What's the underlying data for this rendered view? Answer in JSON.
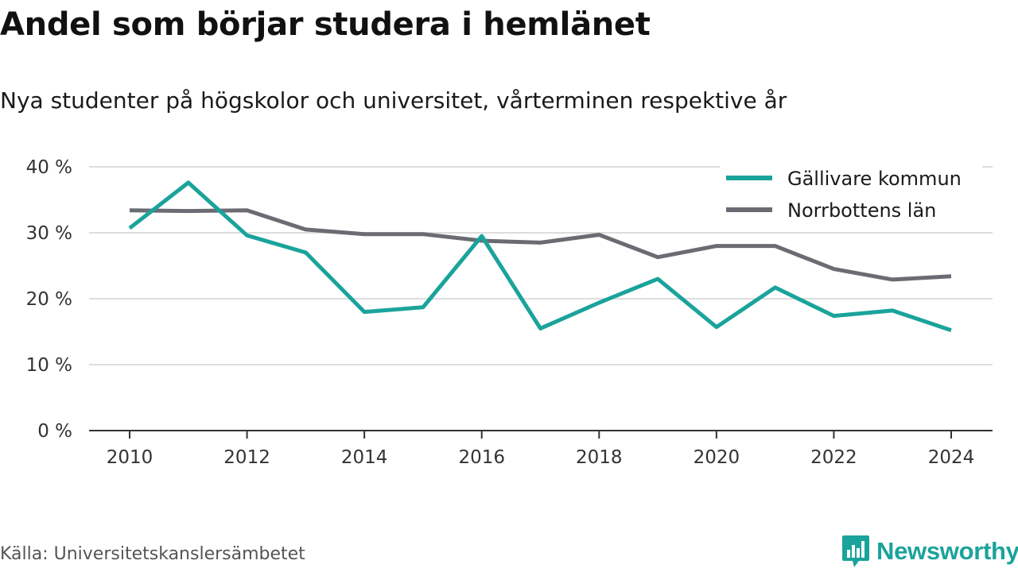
{
  "header": {
    "title": "Andel som börjar studera i hemlänet",
    "subtitle": "Nya studenter på högskolor och universitet, vårterminen respektive år"
  },
  "footer": {
    "source": "Källa: Universitetskanslersämbetet",
    "brand": "Newsworthy",
    "brand_icon": "newsworthy-logo-icon"
  },
  "colors": {
    "gallivare": "#1aa39b",
    "norrbotten": "#6b6b73",
    "grid": "#dddddd",
    "axis": "#333333",
    "brand": "#1aa39b"
  },
  "chart_data": {
    "type": "line",
    "x": [
      2010,
      2011,
      2012,
      2013,
      2014,
      2015,
      2016,
      2017,
      2018,
      2019,
      2020,
      2021,
      2022,
      2023,
      2024
    ],
    "xticks": [
      2010,
      2012,
      2014,
      2016,
      2018,
      2020,
      2022,
      2024
    ],
    "xtick_labels": [
      "2010",
      "2012",
      "2014",
      "2016",
      "2018",
      "2020",
      "2022",
      "2024"
    ],
    "yticks": [
      0,
      10,
      20,
      30,
      40
    ],
    "ytick_labels": [
      "0 %",
      "10 %",
      "20 %",
      "30 %",
      "40 %"
    ],
    "ylim": [
      0,
      40
    ],
    "grid": true,
    "legend_position": "top-right",
    "series": [
      {
        "name": "Gällivare kommun",
        "color": "#1aa39b",
        "values": [
          30.7,
          37.6,
          29.6,
          27.0,
          18.0,
          18.7,
          29.5,
          15.5,
          19.4,
          23.0,
          15.7,
          21.7,
          17.4,
          18.2,
          15.2
        ]
      },
      {
        "name": "Norrbottens län",
        "color": "#6b6b73",
        "values": [
          33.4,
          33.3,
          33.4,
          30.5,
          29.8,
          29.8,
          28.8,
          28.5,
          29.7,
          26.3,
          28.0,
          28.0,
          24.5,
          22.9,
          23.4
        ]
      }
    ]
  }
}
